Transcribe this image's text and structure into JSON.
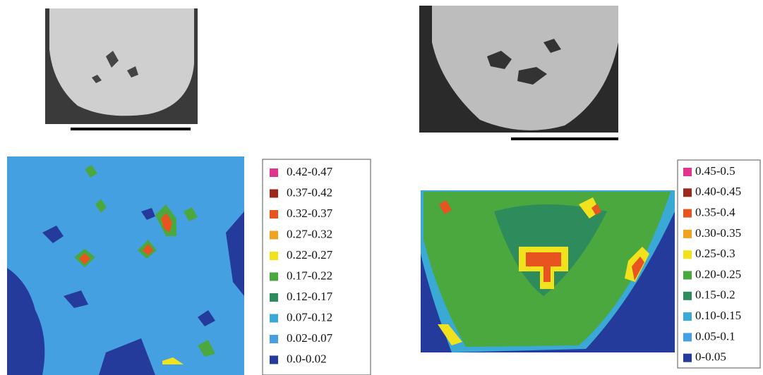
{
  "panels": [
    {
      "legend": [
        {
          "label": "0.42-0.47",
          "color": "#e0358f"
        },
        {
          "label": "0.37-0.42",
          "color": "#9a2a1c"
        },
        {
          "label": "0.32-0.37",
          "color": "#e8541f"
        },
        {
          "label": "0.27-0.32",
          "color": "#efa321"
        },
        {
          "label": "0.22-0.27",
          "color": "#f2e21e"
        },
        {
          "label": "0.17-0.22",
          "color": "#4aa83e"
        },
        {
          "label": "0.12-0.17",
          "color": "#2e8b5c"
        },
        {
          "label": "0.07-0.12",
          "color": "#3aa9d6"
        },
        {
          "label": "0.02-0.07",
          "color": "#45a0e2"
        },
        {
          "label": "0.0-0.02",
          "color": "#243b9c"
        }
      ]
    },
    {
      "legend": [
        {
          "label": "0.45-0.5",
          "color": "#e0358f"
        },
        {
          "label": "0.40-0.45",
          "color": "#9a2a1c"
        },
        {
          "label": "0.35-0.4",
          "color": "#e8541f"
        },
        {
          "label": "0.30-0.35",
          "color": "#efa321"
        },
        {
          "label": "0.25-0.3",
          "color": "#f2e21e"
        },
        {
          "label": "0.20-0.25",
          "color": "#4aa83e"
        },
        {
          "label": "0.15-0.2",
          "color": "#2e8b5c"
        },
        {
          "label": "0.10-0.15",
          "color": "#3aa9d6"
        },
        {
          "label": "0.05-0.1",
          "color": "#45a0e2"
        },
        {
          "label": "0-0.05",
          "color": "#243b9c"
        }
      ]
    }
  ]
}
